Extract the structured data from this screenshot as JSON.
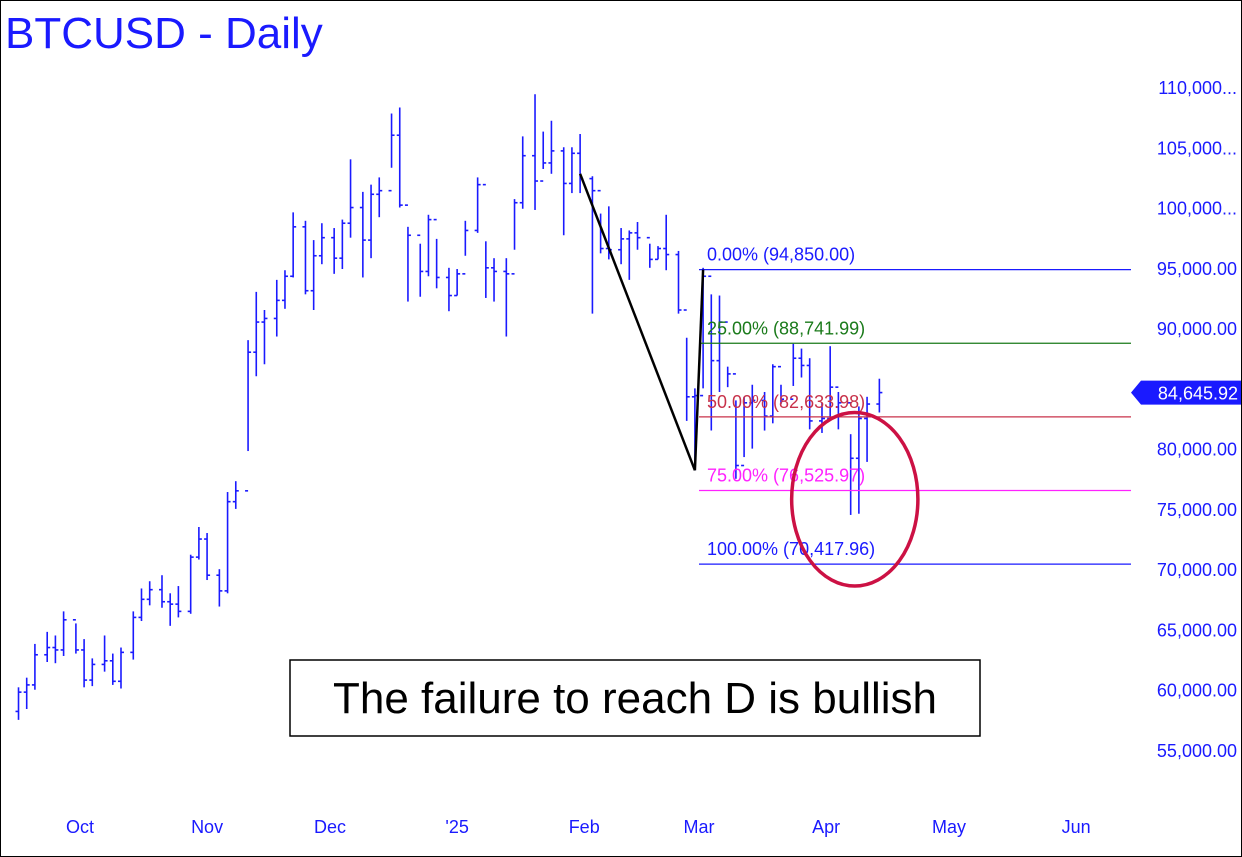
{
  "chart_data": {
    "type": "bar",
    "title": "BTCUSD - Daily",
    "ylim": [
      52000,
      114000
    ],
    "y_ticks": [
      {
        "value": 110000,
        "label": "110,000..."
      },
      {
        "value": 105000,
        "label": "105,000..."
      },
      {
        "value": 100000,
        "label": "100,000..."
      },
      {
        "value": 95000,
        "label": "95,000.00"
      },
      {
        "value": 90000,
        "label": "90,000.00"
      },
      {
        "value": 80000,
        "label": "80,000.00"
      },
      {
        "value": 75000,
        "label": "75,000.00"
      },
      {
        "value": 70000,
        "label": "70,000.00"
      },
      {
        "value": 65000,
        "label": "65,000.00"
      },
      {
        "value": 60000,
        "label": "60,000.00"
      },
      {
        "value": 55000,
        "label": "55,000.00"
      }
    ],
    "x_ticks": [
      {
        "label": "Oct",
        "date": "2024-10-01"
      },
      {
        "label": "Nov",
        "date": "2024-11-01"
      },
      {
        "label": "Dec",
        "date": "2024-12-01"
      },
      {
        "label": "'25",
        "date": "2025-01-01"
      },
      {
        "label": "Feb",
        "date": "2025-02-01"
      },
      {
        "label": "Mar",
        "date": "2025-03-01"
      },
      {
        "label": "Apr",
        "date": "2025-04-01"
      },
      {
        "label": "May",
        "date": "2025-05-01"
      },
      {
        "label": "Jun",
        "date": "2025-06-01"
      }
    ],
    "last_price": {
      "value": 84645.92,
      "label": "84,645.92",
      "color": "#1a1aff"
    },
    "fib_levels": [
      {
        "label": "0.00% (94,850.00)",
        "value": 94850.0,
        "color": "#1a1aff"
      },
      {
        "label": "25.00% (88,741.99)",
        "value": 88741.99,
        "color": "#1a7a1a"
      },
      {
        "label": "50.00% (82,633.98)",
        "value": 82633.98,
        "color": "#c8324a"
      },
      {
        "label": "75.00% (76,525.97)",
        "value": 76525.97,
        "color": "#ff22ff"
      },
      {
        "label": "100.00% (70,417.96)",
        "value": 70417.96,
        "color": "#1a1aff"
      }
    ],
    "pattern_lines": [
      {
        "from": {
          "date": "2025-01-31",
          "price": 102800
        },
        "to": {
          "date": "2025-02-28",
          "price": 78200
        }
      },
      {
        "from": {
          "date": "2025-02-28",
          "price": 78200
        },
        "to": {
          "date": "2025-03-02",
          "price": 94850
        }
      }
    ],
    "highlight_ellipse": {
      "center_date": "2025-04-08",
      "center_price": 75800,
      "date_radius_days": 7,
      "price_radius": 7200,
      "color": "#cc1144"
    },
    "annotation": "The failure to reach D is bullish",
    "series": [
      {
        "values_x_y": "daily OHLC",
        "bars": [
          [
            "2024-09-16",
            58200,
            60200,
            57500,
            59800
          ],
          [
            "2024-09-18",
            59800,
            61000,
            58400,
            60400
          ],
          [
            "2024-09-20",
            60400,
            63800,
            60000,
            62900
          ],
          [
            "2024-09-23",
            62900,
            64800,
            62300,
            63500
          ],
          [
            "2024-09-25",
            63500,
            64500,
            62200,
            63300
          ],
          [
            "2024-09-27",
            63300,
            66500,
            62800,
            65800
          ],
          [
            "2024-09-30",
            65800,
            65500,
            63000,
            63300
          ],
          [
            "2024-10-02",
            63300,
            64200,
            60200,
            60800
          ],
          [
            "2024-10-04",
            60800,
            62600,
            60300,
            62100
          ],
          [
            "2024-10-07",
            62100,
            64500,
            61500,
            62400
          ],
          [
            "2024-10-09",
            62400,
            63000,
            60400,
            60700
          ],
          [
            "2024-10-11",
            60700,
            63500,
            60100,
            63100
          ],
          [
            "2024-10-14",
            63100,
            66500,
            62500,
            66000
          ],
          [
            "2024-10-16",
            66000,
            68400,
            65700,
            67500
          ],
          [
            "2024-10-18",
            67500,
            69000,
            67000,
            68300
          ],
          [
            "2024-10-21",
            68300,
            69500,
            66800,
            67300
          ],
          [
            "2024-10-23",
            67300,
            68000,
            65300,
            67100
          ],
          [
            "2024-10-25",
            67100,
            68600,
            66000,
            66500
          ],
          [
            "2024-10-28",
            66500,
            71200,
            66300,
            71000
          ],
          [
            "2024-10-30",
            71000,
            73500,
            70800,
            72500
          ],
          [
            "2024-11-01",
            72500,
            73000,
            69100,
            69500
          ],
          [
            "2024-11-04",
            69500,
            70000,
            66900,
            68200
          ],
          [
            "2024-11-06",
            68200,
            76400,
            68000,
            75600
          ],
          [
            "2024-11-08",
            75600,
            77300,
            75000,
            76500
          ],
          [
            "2024-11-11",
            76500,
            89000,
            79800,
            88000
          ],
          [
            "2024-11-13",
            88000,
            93000,
            86000,
            90500
          ],
          [
            "2024-11-15",
            90500,
            91500,
            87000,
            90800
          ],
          [
            "2024-11-18",
            90800,
            94000,
            89300,
            92300
          ],
          [
            "2024-11-20",
            92300,
            94800,
            91600,
            94300
          ],
          [
            "2024-11-22",
            94300,
            99600,
            94200,
            98400
          ],
          [
            "2024-11-25",
            98400,
            98900,
            92800,
            93100
          ],
          [
            "2024-11-27",
            93100,
            97300,
            91500,
            96000
          ],
          [
            "2024-11-29",
            96000,
            98700,
            95300,
            97500
          ],
          [
            "2024-12-02",
            97500,
            98300,
            94500,
            95800
          ],
          [
            "2024-12-04",
            95800,
            99000,
            94900,
            98700
          ],
          [
            "2024-12-06",
            98700,
            104000,
            97500,
            100000
          ],
          [
            "2024-12-09",
            100000,
            101300,
            94200,
            97300
          ],
          [
            "2024-12-11",
            97300,
            101900,
            95800,
            101100
          ],
          [
            "2024-12-13",
            101100,
            102500,
            99200,
            101400
          ],
          [
            "2024-12-16",
            101400,
            107800,
            103300,
            106000
          ],
          [
            "2024-12-18",
            106000,
            108300,
            100000,
            100200
          ],
          [
            "2024-12-20",
            100200,
            98400,
            92200,
            97700
          ],
          [
            "2024-12-23",
            97700,
            97000,
            92600,
            94700
          ],
          [
            "2024-12-25",
            94700,
            99400,
            94300,
            99000
          ],
          [
            "2024-12-27",
            99000,
            97400,
            93300,
            94200
          ],
          [
            "2024-12-30",
            94200,
            95000,
            91400,
            92700
          ],
          [
            "2025-01-01",
            92700,
            94900,
            92700,
            94500
          ],
          [
            "2025-01-03",
            94500,
            98900,
            96000,
            98100
          ],
          [
            "2025-01-06",
            98100,
            102500,
            97900,
            101900
          ],
          [
            "2025-01-08",
            101900,
            97200,
            92500,
            95000
          ],
          [
            "2025-01-10",
            95000,
            95800,
            92200,
            94700
          ],
          [
            "2025-01-13",
            94700,
            95800,
            89300,
            94500
          ],
          [
            "2025-01-15",
            94500,
            100700,
            96500,
            100400
          ],
          [
            "2025-01-17",
            100400,
            105900,
            99900,
            104300
          ],
          [
            "2025-01-20",
            104300,
            109400,
            99800,
            102200
          ],
          [
            "2025-01-22",
            102200,
            106300,
            103200,
            103700
          ],
          [
            "2025-01-24",
            103700,
            107200,
            102800,
            104700
          ],
          [
            "2025-01-27",
            104700,
            105000,
            97700,
            102000
          ],
          [
            "2025-01-29",
            102000,
            105000,
            101200,
            104500
          ],
          [
            "2025-01-31",
            104500,
            106100,
            101200,
            102400
          ],
          [
            "2025-02-03",
            102400,
            102600,
            91200,
            101400
          ],
          [
            "2025-02-05",
            101400,
            99500,
            96200,
            96600
          ],
          [
            "2025-02-07",
            96600,
            100100,
            95700,
            96500
          ],
          [
            "2025-02-10",
            96500,
            98300,
            95300,
            97400
          ],
          [
            "2025-02-12",
            97400,
            98100,
            94000,
            97900
          ],
          [
            "2025-02-14",
            97900,
            98800,
            96500,
            97500
          ],
          [
            "2025-02-17",
            97500,
            97000,
            95000,
            95700
          ],
          [
            "2025-02-19",
            95700,
            96800,
            95700,
            96600
          ],
          [
            "2025-02-21",
            96600,
            99400,
            94800,
            96100
          ],
          [
            "2025-02-24",
            96100,
            96400,
            91200,
            91500
          ],
          [
            "2025-02-26",
            91500,
            89200,
            82300,
            84300
          ],
          [
            "2025-02-28",
            84300,
            85000,
            78200,
            84400
          ],
          [
            "2025-03-02",
            84400,
            95000,
            85000,
            94300
          ],
          [
            "2025-03-04",
            94300,
            92800,
            81500,
            87300
          ],
          [
            "2025-03-06",
            87300,
            92700,
            84700,
            90500
          ],
          [
            "2025-03-08",
            90500,
            86800,
            85100,
            86200
          ],
          [
            "2025-03-10",
            86200,
            84000,
            77500,
            78600
          ],
          [
            "2025-03-12",
            78600,
            84300,
            79300,
            83800
          ],
          [
            "2025-03-14",
            83800,
            85300,
            80000,
            84000
          ],
          [
            "2025-03-17",
            84000,
            84700,
            81500,
            82700
          ],
          [
            "2025-03-19",
            82700,
            87000,
            82100,
            86800
          ],
          [
            "2025-03-21",
            86800,
            85300,
            83700,
            84100
          ],
          [
            "2025-03-24",
            84100,
            88700,
            85200,
            87500
          ],
          [
            "2025-03-26",
            87500,
            88300,
            85900,
            86900
          ],
          [
            "2025-03-28",
            86900,
            87500,
            81600,
            82300
          ],
          [
            "2025-03-31",
            82300,
            83800,
            81300,
            82500
          ],
          [
            "2025-04-02",
            82500,
            88500,
            82600,
            85100
          ],
          [
            "2025-04-04",
            85100,
            84700,
            81600,
            83800
          ],
          [
            "2025-04-07",
            83800,
            81200,
            74500,
            79200
          ],
          [
            "2025-04-09",
            79200,
            83500,
            74600,
            82500
          ],
          [
            "2025-04-11",
            82500,
            84300,
            78900,
            83700
          ],
          [
            "2025-04-14",
            83700,
            85800,
            83000,
            84650
          ]
        ]
      }
    ]
  }
}
